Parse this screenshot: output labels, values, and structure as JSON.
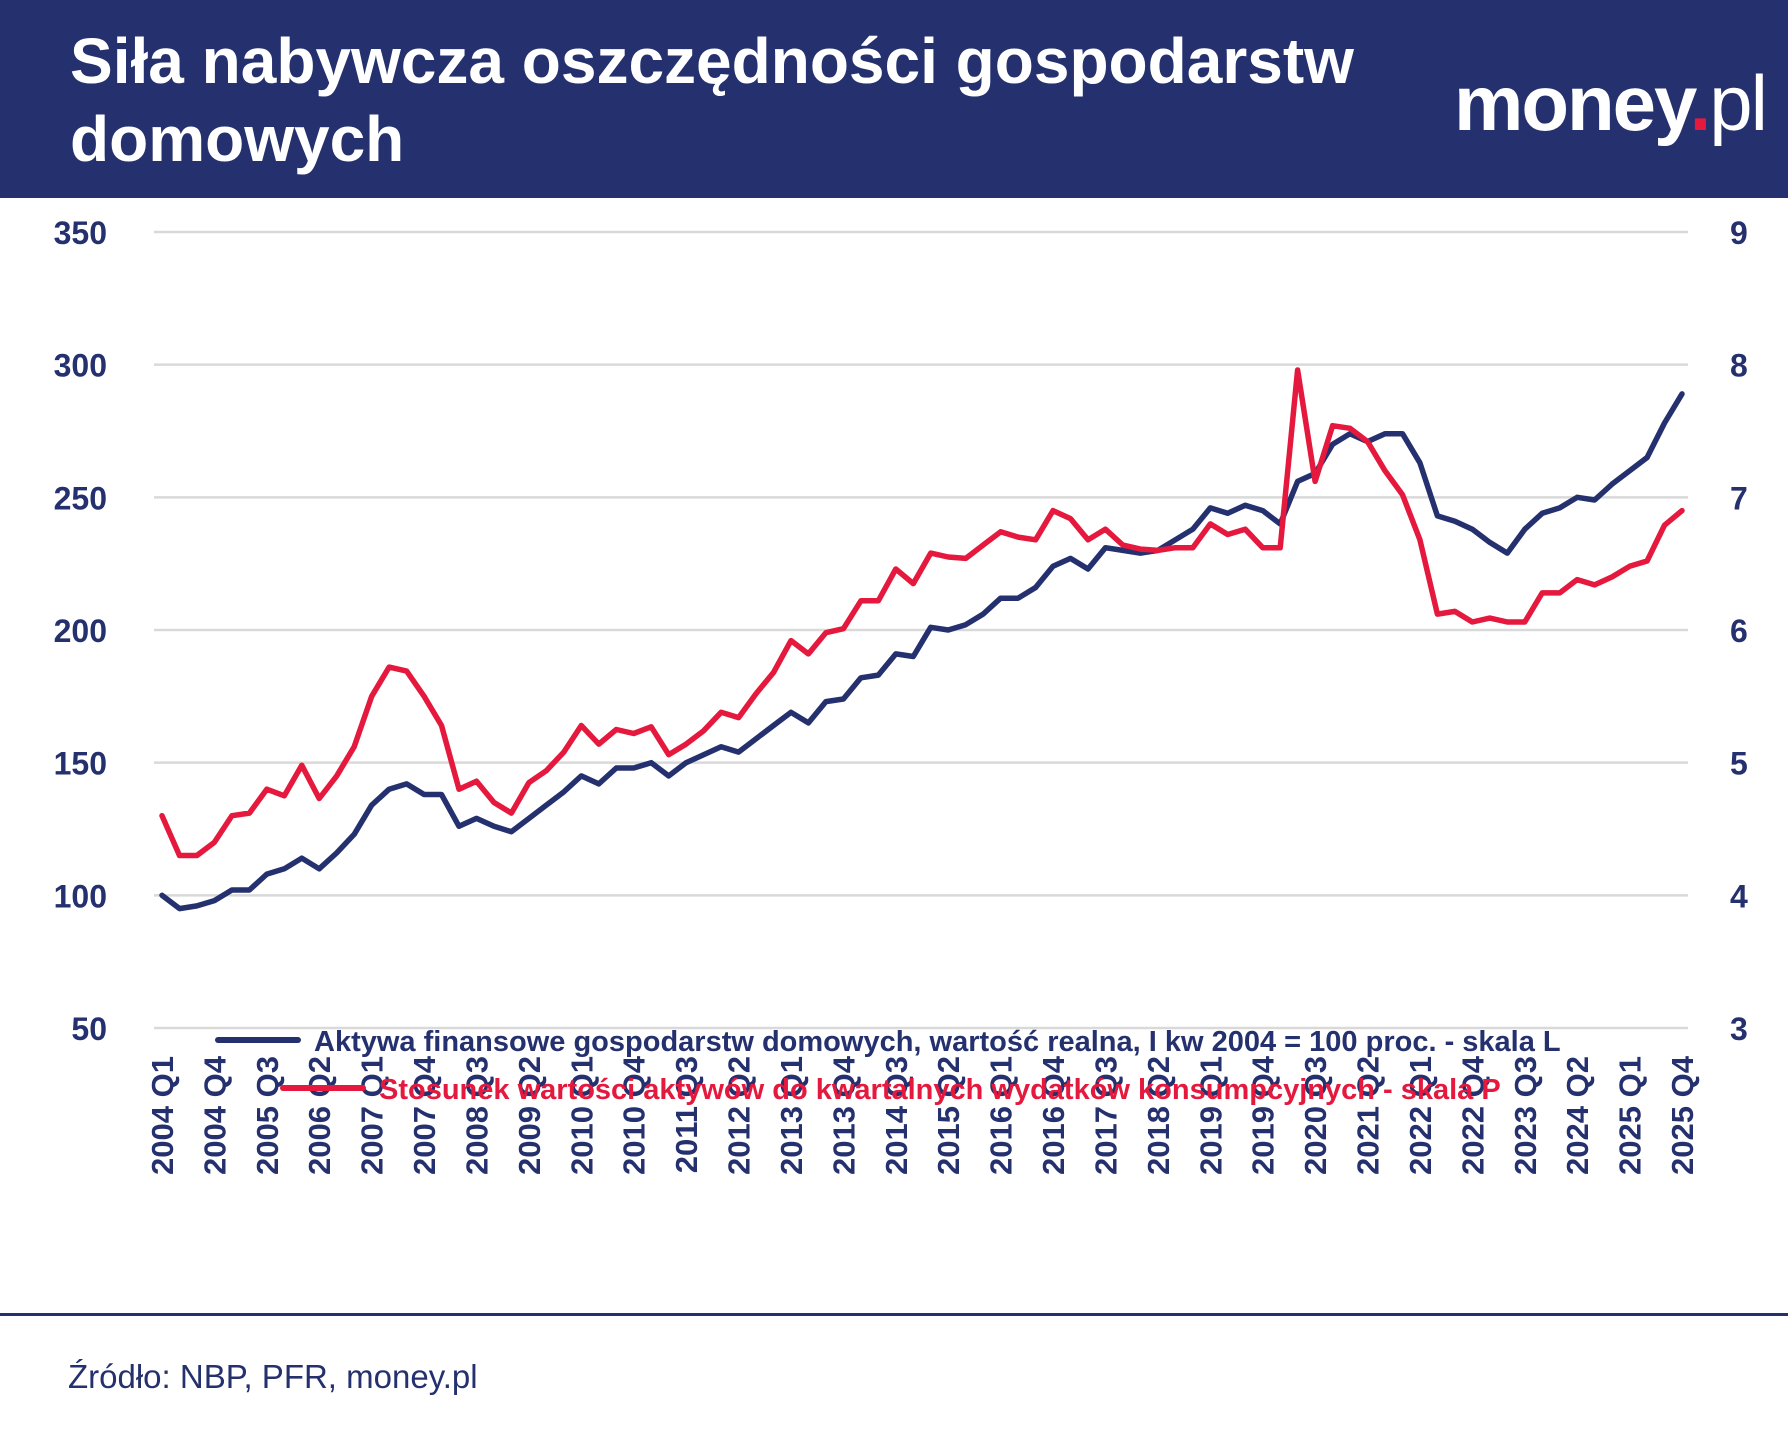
{
  "header": {
    "title": "Siła nabywcza oszczędności gospodarstw domowych",
    "logo": {
      "name": "money",
      "dot": ".",
      "tld": "pl"
    }
  },
  "colors": {
    "navy": "#25316e",
    "red": "#e5183d",
    "grid": "#d9d9d9",
    "background": "#ffffff"
  },
  "chart_data": {
    "type": "line",
    "title": "Siła nabywcza oszczędności gospodarstw domowych",
    "grid": true,
    "legend_position": "bottom-center",
    "y_left": {
      "min": 50,
      "max": 350,
      "ticks": [
        350,
        300,
        250,
        200,
        150,
        100,
        50
      ]
    },
    "y_right": {
      "min": 3,
      "max": 9,
      "ticks": [
        9,
        8,
        7,
        6,
        5,
        4,
        3
      ]
    },
    "x_tick_labels": [
      "2004 Q1",
      "2004 Q4",
      "2005 Q3",
      "2006 Q2",
      "2007 Q1",
      "2007 Q4",
      "2008 Q3",
      "2009 Q2",
      "2010 Q1",
      "2010 Q4",
      "2011 Q3",
      "2012 Q2",
      "2013 Q1",
      "2013 Q4",
      "2014 Q3",
      "2015 Q2",
      "2016 Q1",
      "2016 Q4",
      "2017 Q3",
      "2018 Q2",
      "2019 Q1",
      "2019 Q4",
      "2020 Q3",
      "2021 Q2",
      "2022 Q1",
      "2022 Q4",
      "2023 Q3",
      "2024 Q2",
      "2025 Q1",
      "2025 Q4"
    ],
    "x": [
      "2004 Q1",
      "2004 Q2",
      "2004 Q3",
      "2004 Q4",
      "2005 Q1",
      "2005 Q2",
      "2005 Q3",
      "2005 Q4",
      "2006 Q1",
      "2006 Q2",
      "2006 Q3",
      "2006 Q4",
      "2007 Q1",
      "2007 Q2",
      "2007 Q3",
      "2007 Q4",
      "2008 Q1",
      "2008 Q2",
      "2008 Q3",
      "2008 Q4",
      "2009 Q1",
      "2009 Q2",
      "2009 Q3",
      "2009 Q4",
      "2010 Q1",
      "2010 Q2",
      "2010 Q3",
      "2010 Q4",
      "2011 Q1",
      "2011 Q2",
      "2011 Q3",
      "2011 Q4",
      "2012 Q1",
      "2012 Q2",
      "2012 Q3",
      "2012 Q4",
      "2013 Q1",
      "2013 Q2",
      "2013 Q3",
      "2013 Q4",
      "2014 Q1",
      "2014 Q2",
      "2014 Q3",
      "2014 Q4",
      "2015 Q1",
      "2015 Q2",
      "2015 Q3",
      "2015 Q4",
      "2016 Q1",
      "2016 Q2",
      "2016 Q3",
      "2016 Q4",
      "2017 Q1",
      "2017 Q2",
      "2017 Q3",
      "2017 Q4",
      "2018 Q1",
      "2018 Q2",
      "2018 Q3",
      "2018 Q4",
      "2019 Q1",
      "2019 Q2",
      "2019 Q3",
      "2019 Q4",
      "2020 Q1",
      "2020 Q2",
      "2020 Q3",
      "2020 Q4",
      "2021 Q1",
      "2021 Q2",
      "2021 Q3",
      "2021 Q4",
      "2022 Q1",
      "2022 Q2",
      "2022 Q3",
      "2022 Q4",
      "2023 Q1",
      "2023 Q2",
      "2023 Q3",
      "2023 Q4",
      "2024 Q1",
      "2024 Q2",
      "2024 Q3",
      "2024 Q4",
      "2025 Q1",
      "2025 Q2",
      "2025 Q3",
      "2025 Q4"
    ],
    "series": [
      {
        "name": "Aktywa finansowe gospodarstw domowych, wartość realna, I kw 2004 = 100 proc. - skala L",
        "axis": "left",
        "color": "#25316e",
        "values": [
          100,
          95,
          96,
          98,
          102,
          102,
          108,
          110,
          114,
          110,
          116,
          123,
          134,
          140,
          142,
          138,
          138,
          126,
          129,
          126,
          124,
          129,
          134,
          139,
          145,
          142,
          148,
          148,
          150,
          145,
          150,
          153,
          156,
          154,
          159,
          164,
          169,
          165,
          173,
          174,
          182,
          183,
          191,
          190,
          201,
          200,
          202,
          206,
          212,
          212,
          216,
          224,
          227,
          223,
          231,
          230,
          229,
          230,
          234,
          238,
          246,
          244,
          247,
          245,
          240,
          256,
          259,
          270,
          274,
          271,
          274,
          274,
          263,
          243,
          241,
          238,
          233,
          229,
          238,
          244,
          246,
          250,
          249,
          255,
          260,
          265,
          278,
          289
        ]
      },
      {
        "name": "Stosunek wartości aktywów do kwartalnych wydatków konsumpcyjnych - skala P",
        "axis": "right",
        "color": "#e5183d",
        "values": [
          4.6,
          4.3,
          4.3,
          4.4,
          4.6,
          4.62,
          4.8,
          4.75,
          4.98,
          4.73,
          4.9,
          5.12,
          5.5,
          5.72,
          5.69,
          5.5,
          5.28,
          4.8,
          4.86,
          4.7,
          4.62,
          4.85,
          4.94,
          5.08,
          5.28,
          5.14,
          5.25,
          5.22,
          5.27,
          5.06,
          5.14,
          5.24,
          5.38,
          5.34,
          5.52,
          5.68,
          5.92,
          5.82,
          5.98,
          6.01,
          6.22,
          6.22,
          6.46,
          6.35,
          6.58,
          6.55,
          6.54,
          6.64,
          6.74,
          6.7,
          6.68,
          6.9,
          6.84,
          6.68,
          6.76,
          6.64,
          6.61,
          6.6,
          6.62,
          6.62,
          6.8,
          6.72,
          6.76,
          6.62,
          6.62,
          7.96,
          7.12,
          7.54,
          7.52,
          7.42,
          7.2,
          7.02,
          6.68,
          6.12,
          6.14,
          6.06,
          6.09,
          6.06,
          6.06,
          6.28,
          6.28,
          6.38,
          6.34,
          6.4,
          6.48,
          6.52,
          6.79,
          6.9
        ]
      }
    ]
  },
  "source": "Źródło: NBP, PFR, money.pl"
}
